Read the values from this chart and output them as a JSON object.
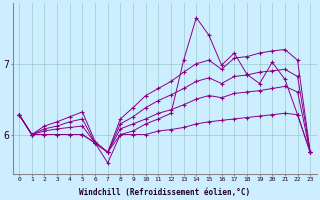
{
  "xlabel": "Windchill (Refroidissement éolien,°C)",
  "background_color": "#cceeff",
  "line_color": "#880088",
  "x_ticks": [
    0,
    1,
    2,
    3,
    4,
    5,
    6,
    7,
    8,
    9,
    10,
    11,
    12,
    13,
    14,
    15,
    16,
    17,
    18,
    19,
    20,
    21,
    22,
    23
  ],
  "y_ticks": [
    6,
    7
  ],
  "ylim": [
    5.45,
    7.85
  ],
  "xlim": [
    -0.5,
    23.5
  ],
  "series": [
    [
      6.28,
      6.0,
      6.0,
      6.0,
      6.0,
      6.0,
      5.88,
      5.75,
      6.0,
      6.0,
      6.0,
      6.05,
      6.07,
      6.1,
      6.15,
      6.18,
      6.2,
      6.22,
      6.24,
      6.26,
      6.28,
      6.3,
      6.28,
      5.75
    ],
    [
      6.28,
      6.0,
      6.05,
      6.08,
      6.1,
      6.12,
      5.88,
      5.75,
      6.08,
      6.15,
      6.22,
      6.3,
      6.35,
      6.42,
      6.5,
      6.55,
      6.52,
      6.58,
      6.6,
      6.62,
      6.65,
      6.68,
      6.6,
      5.75
    ],
    [
      6.28,
      6.0,
      6.08,
      6.12,
      6.18,
      6.22,
      5.88,
      5.75,
      6.15,
      6.25,
      6.38,
      6.48,
      6.56,
      6.65,
      6.75,
      6.8,
      6.72,
      6.82,
      6.84,
      6.88,
      6.9,
      6.92,
      6.82,
      5.75
    ],
    [
      6.28,
      6.0,
      6.12,
      6.18,
      6.25,
      6.32,
      5.9,
      5.75,
      6.22,
      6.38,
      6.55,
      6.65,
      6.75,
      6.88,
      7.0,
      7.05,
      6.92,
      7.08,
      7.1,
      7.15,
      7.18,
      7.2,
      7.05,
      5.75
    ],
    [
      6.28,
      6.0,
      6.0,
      6.0,
      6.0,
      6.0,
      5.88,
      5.6,
      6.0,
      6.05,
      6.15,
      6.22,
      6.3,
      7.05,
      7.65,
      7.4,
      6.98,
      7.15,
      6.85,
      6.72,
      7.02,
      6.78,
      6.28,
      5.75
    ]
  ]
}
